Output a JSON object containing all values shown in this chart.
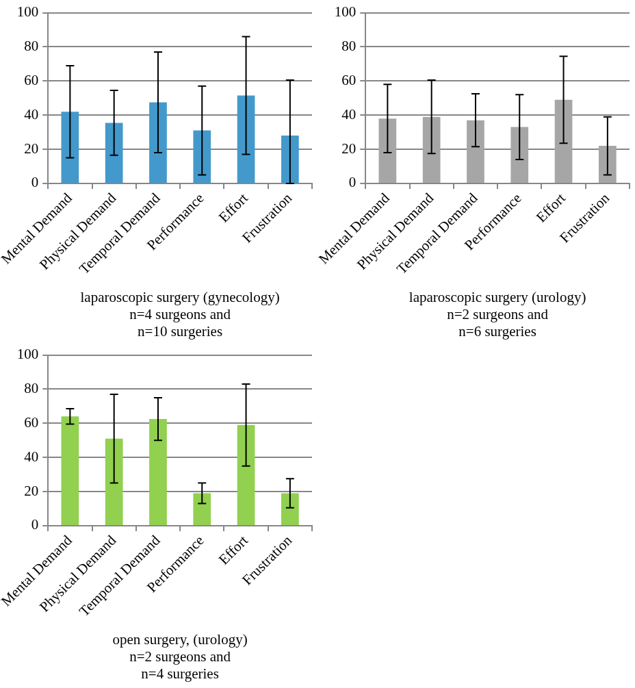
{
  "chart_data": [
    {
      "type": "bar",
      "xlabel": "laparoscopic surgery (gynecology)\nn=4 surgeons and\nn=10 surgeries",
      "categories": [
        "Mental Demand",
        "Physical Demand",
        "Temporal Demand",
        "Performance",
        "Effort",
        "Frustration"
      ],
      "series": [
        {
          "color": "#4399cb",
          "values": [
            42,
            35.5,
            47.5,
            31,
            51.5,
            28
          ],
          "errors": [
            27,
            19,
            29.5,
            26,
            34.5,
            [
              0,
              60.5
            ]
          ]
        }
      ],
      "ylim": [
        0,
        100
      ],
      "yticks": [
        0,
        20,
        40,
        60,
        80,
        100
      ],
      "grid": "y",
      "legend": false
    },
    {
      "type": "bar",
      "xlabel": "laparoscopic surgery (urology)\nn=2 surgeons and\nn=6 surgeries",
      "categories": [
        "Mental Demand",
        "Physical Demand",
        "Temporal Demand",
        "Performance",
        "Effort",
        "Frustration"
      ],
      "series": [
        {
          "color": "#a6a6a6",
          "values": [
            38,
            39,
            37,
            33,
            49,
            22
          ],
          "errors": [
            20,
            21.5,
            15.5,
            19,
            25.5,
            17
          ]
        }
      ],
      "ylim": [
        0,
        100
      ],
      "yticks": [
        0,
        20,
        40,
        60,
        80,
        100
      ],
      "grid": "y",
      "legend": false
    },
    {
      "type": "bar",
      "xlabel": "open surgery, (urology)\nn=2 surgeons and\nn=4 surgeries",
      "categories": [
        "Mental Demand",
        "Physical Demand",
        "Temporal Demand",
        "Performance",
        "Effort",
        "Frustration"
      ],
      "series": [
        {
          "color": "#92d050",
          "values": [
            64,
            51,
            62.5,
            19,
            59,
            19
          ],
          "errors": [
            4.5,
            26,
            12.5,
            6,
            24,
            8.5
          ]
        }
      ],
      "ylim": [
        0,
        100
      ],
      "yticks": [
        0,
        20,
        40,
        60,
        80,
        100
      ],
      "grid": "y",
      "legend": false
    }
  ]
}
